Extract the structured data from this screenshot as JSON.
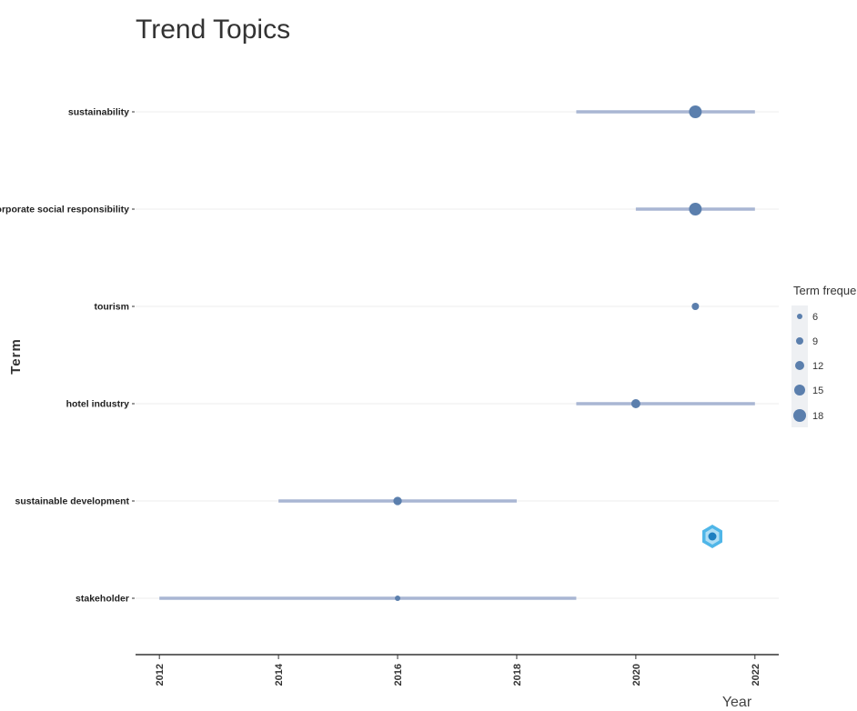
{
  "chart_data": {
    "type": "scatter",
    "title": "Trend Topics",
    "xlabel": "Year",
    "ylabel": "Term",
    "xlim": [
      2011.6,
      2022.4
    ],
    "x_ticks": [
      2012,
      2014,
      2016,
      2018,
      2020,
      2022
    ],
    "x_tick_labels": [
      "2012",
      "2014",
      "2016",
      "2018",
      "2020",
      "2022"
    ],
    "grid": true,
    "point_color": "#5b7fad",
    "range_color": "#a9b6d3",
    "terms": [
      {
        "term": "sustainability",
        "year_start": 2019,
        "year_end": 2022,
        "year_median": 2021,
        "freq": 18
      },
      {
        "term": "corporate social responsibility",
        "year_start": 2020,
        "year_end": 2022,
        "year_median": 2021,
        "freq": 18
      },
      {
        "term": "tourism",
        "year_start": 2021,
        "year_end": 2021,
        "year_median": 2021,
        "freq": 9
      },
      {
        "term": "hotel industry",
        "year_start": 2019,
        "year_end": 2022,
        "year_median": 2020,
        "freq": 12
      },
      {
        "term": "sustainable development",
        "year_start": 2014,
        "year_end": 2018,
        "year_median": 2016,
        "freq": 11
      },
      {
        "term": "stakeholder",
        "year_start": 2012,
        "year_end": 2019,
        "year_median": 2016,
        "freq": 6
      }
    ],
    "legend": {
      "title": "Term frequency",
      "placement": "right",
      "entries": [
        {
          "label": "6",
          "value": 6
        },
        {
          "label": "9",
          "value": 9
        },
        {
          "label": "12",
          "value": 12
        },
        {
          "label": "15",
          "value": 15
        },
        {
          "label": "18",
          "value": 18
        }
      ]
    }
  }
}
